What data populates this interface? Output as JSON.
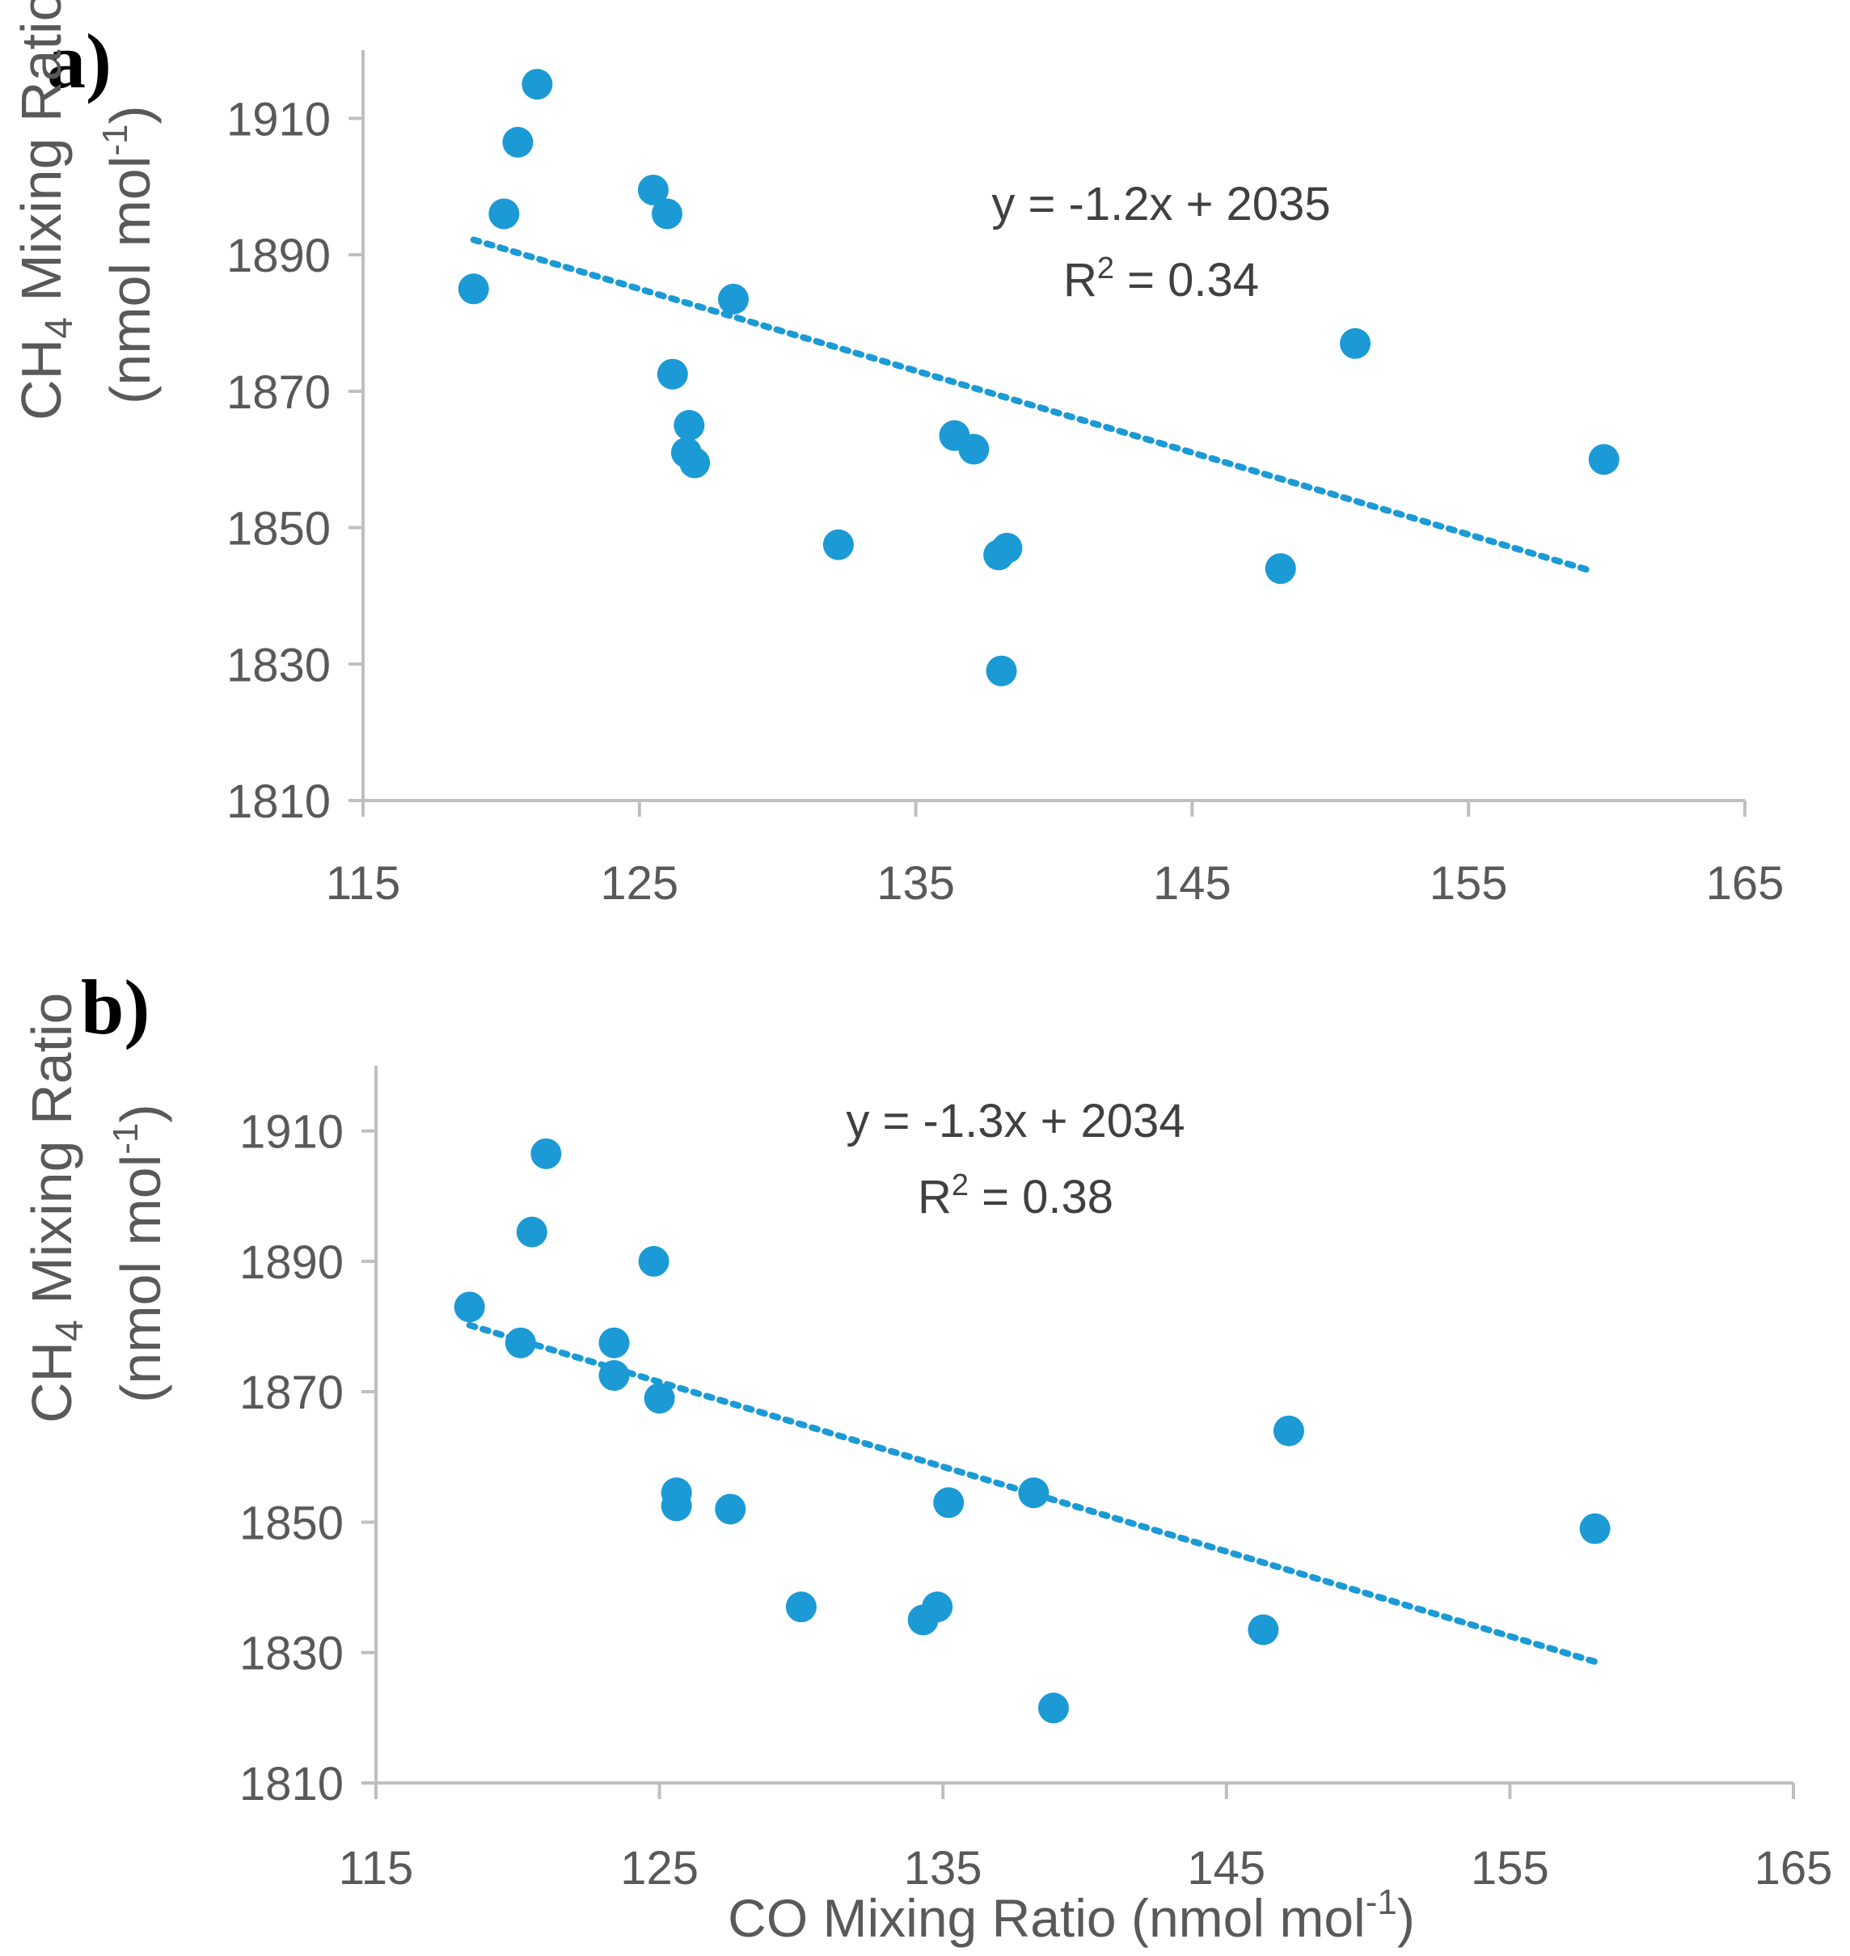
{
  "chart_data": [
    {
      "panel_label": "a)",
      "type": "scatter",
      "ylabel_main": "CH",
      "ylabel_sub": "4",
      "ylabel_rest": " Mixing Ratio",
      "ylabel_units": "(nmol mol",
      "ylabel_units_sup": "-1",
      "ylabel_units_close": ")",
      "xlim": [
        115,
        165
      ],
      "ylim": [
        1810,
        1920
      ],
      "xticks": [
        "115",
        "125",
        "135",
        "145",
        "155",
        "165"
      ],
      "yticks": [
        "1810",
        "1830",
        "1850",
        "1870",
        "1890",
        "1910"
      ],
      "trendline": {
        "slope": -1.2,
        "intercept": 2035,
        "x_start": 119,
        "x_end": 159.5
      },
      "equation": "y = -1.2x + 2035",
      "r2_prefix": "R",
      "r2_sup": "2",
      "r2_value": " = 0.34",
      "marker_color": "#1b9ad6",
      "x": [
        121.3,
        120.6,
        120.1,
        119.0,
        125.5,
        126.0,
        128.4,
        126.2,
        126.8,
        126.7,
        127.0,
        132.2,
        136.4,
        137.1,
        138.0,
        138.3,
        138.1,
        148.2,
        150.9,
        159.9
      ],
      "y": [
        1915,
        1906.5,
        1896,
        1885,
        1899.5,
        1896,
        1883.5,
        1872.5,
        1865,
        1861,
        1859.5,
        1847.5,
        1863.5,
        1861.5,
        1846,
        1847,
        1829,
        1844,
        1877,
        1860
      ]
    },
    {
      "panel_label": "b)",
      "type": "scatter",
      "ylabel_main": "CH",
      "ylabel_sub": "4",
      "ylabel_rest": " Mixing Ratio",
      "ylabel_units": "(nmol mol",
      "ylabel_units_sup": "-1",
      "ylabel_units_close": ")",
      "xlabel": "CO Mixing Ratio (nmol mol",
      "xlabel_sup": "-1",
      "xlabel_close": ")",
      "xlim": [
        115,
        165
      ],
      "ylim": [
        1810,
        1920
      ],
      "xticks": [
        "115",
        "125",
        "135",
        "145",
        "155",
        "165"
      ],
      "yticks": [
        "1810",
        "1830",
        "1850",
        "1870",
        "1890",
        "1910"
      ],
      "trendline": {
        "slope": -1.3,
        "intercept": 2034,
        "x_start": 118.3,
        "x_end": 158.2
      },
      "equation": "y = -1.3x + 2034",
      "r2_prefix": "R",
      "r2_sup": "2",
      "r2_value": " = 0.38",
      "marker_color": "#1b9ad6",
      "x": [
        121.0,
        120.5,
        118.3,
        120.1,
        124.8,
        123.4,
        123.4,
        125.0,
        125.6,
        125.6,
        127.5,
        130.0,
        134.3,
        134.8,
        135.2,
        138.2,
        138.9,
        146.3,
        147.2,
        158.0
      ],
      "y": [
        1906.5,
        1894.5,
        1883,
        1877.5,
        1890,
        1877.5,
        1872.5,
        1869,
        1854.5,
        1852.5,
        1852,
        1837,
        1835,
        1837,
        1853,
        1854.5,
        1821.5,
        1833.5,
        1864,
        1849
      ]
    }
  ]
}
